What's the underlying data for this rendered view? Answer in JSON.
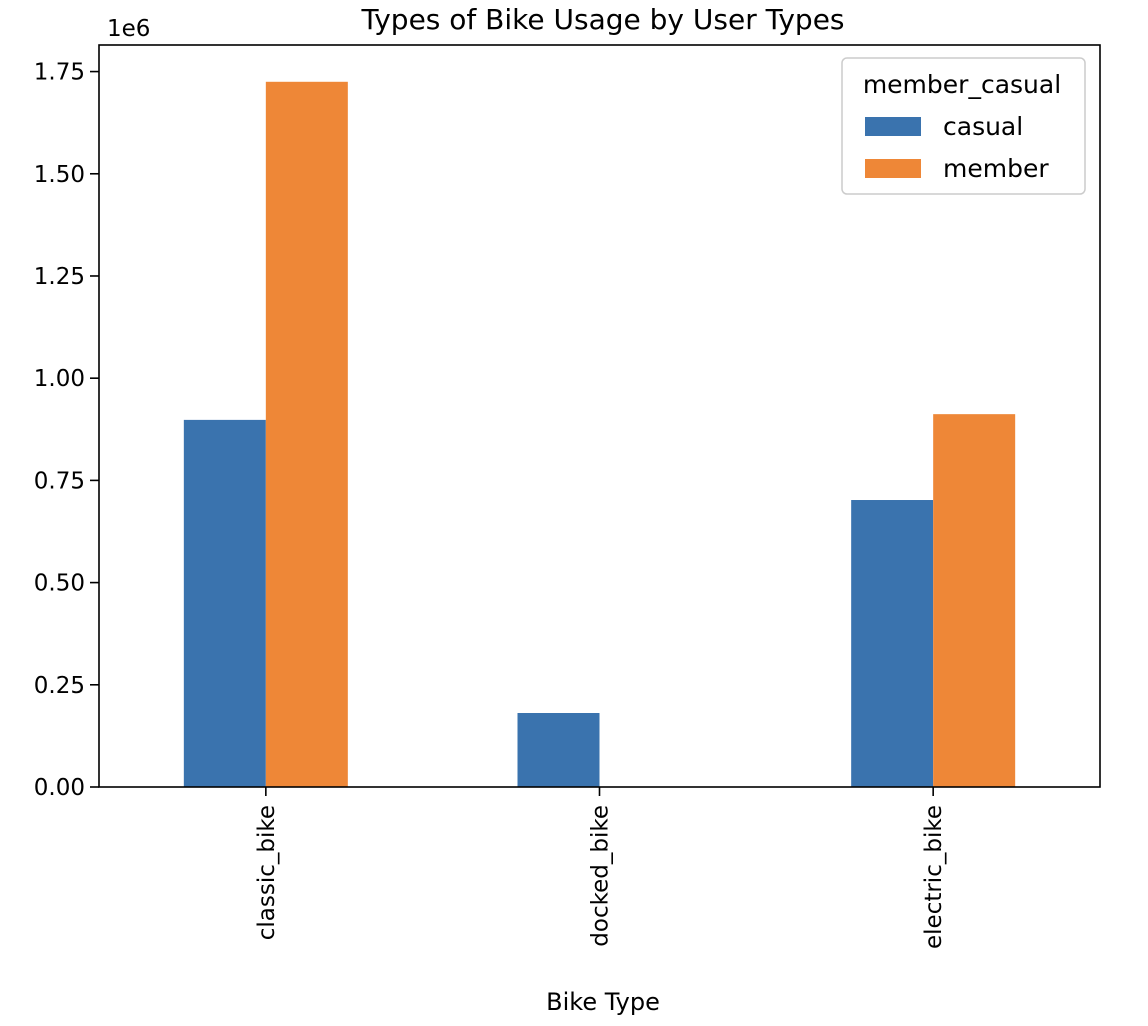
{
  "chart_data": {
    "type": "bar",
    "title": "Types of Bike Usage by User Types",
    "xlabel": "Bike Type",
    "ylabel": "",
    "y_exponent_label": "1e6",
    "categories": [
      "classic_bike",
      "docked_bike",
      "electric_bike"
    ],
    "series": [
      {
        "name": "casual",
        "color": "#3a73ae",
        "values": [
          898000,
          181000,
          702000
        ]
      },
      {
        "name": "member",
        "color": "#ee8737",
        "values": [
          1725000,
          0,
          912000
        ]
      }
    ],
    "ylim": [
      0,
      1815000
    ],
    "yticks": [
      0,
      250000,
      500000,
      750000,
      1000000,
      1250000,
      1500000,
      1750000
    ],
    "ytick_labels": [
      "0.00",
      "0.25",
      "0.50",
      "0.75",
      "1.00",
      "1.25",
      "1.50",
      "1.75"
    ],
    "legend": {
      "title": "member_casual",
      "position": "top-right"
    },
    "grid": false
  }
}
